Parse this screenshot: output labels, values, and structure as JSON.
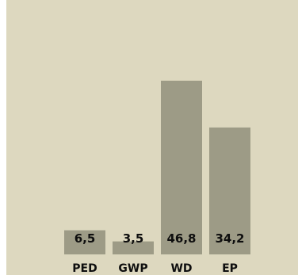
{
  "chart_data": {
    "type": "bar",
    "categories": [
      "PED",
      "GWP",
      "WD",
      "EP"
    ],
    "values": [
      6.5,
      3.5,
      46.8,
      34.2
    ],
    "value_labels": [
      "6,5",
      "3,5",
      "46,8",
      "34,2"
    ],
    "ylim": [
      0,
      60
    ],
    "grid": false,
    "legend": "none",
    "colors": {
      "bar": "#9d9b86",
      "background": "#ddd8bf",
      "text": "#0e0e0e"
    }
  }
}
